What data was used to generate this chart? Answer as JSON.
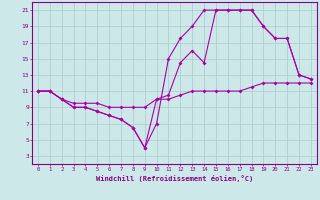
{
  "xlabel": "Windchill (Refroidissement éolien,°C)",
  "background_color": "#cce8e8",
  "grid_color": "#aacccc",
  "line_color": "#aa00aa",
  "xlim": [
    -0.5,
    23.5
  ],
  "ylim": [
    2,
    22
  ],
  "yticks": [
    3,
    5,
    7,
    9,
    11,
    13,
    15,
    17,
    19,
    21
  ],
  "xticks": [
    0,
    1,
    2,
    3,
    4,
    5,
    6,
    7,
    8,
    9,
    10,
    11,
    12,
    13,
    14,
    15,
    16,
    17,
    18,
    19,
    20,
    21,
    22,
    23
  ],
  "line1_x": [
    0,
    1,
    2,
    3,
    4,
    5,
    6,
    7,
    8,
    9,
    10,
    11,
    12,
    13,
    14,
    15,
    16,
    17,
    18,
    19,
    20,
    21,
    22,
    23
  ],
  "line1_y": [
    11,
    11,
    10,
    9.5,
    9.5,
    9.5,
    9,
    9,
    9,
    9,
    10,
    10,
    10.5,
    11,
    11,
    11,
    11,
    11,
    11.5,
    12,
    12,
    12,
    12,
    12
  ],
  "line2_x": [
    0,
    1,
    2,
    3,
    4,
    5,
    6,
    7,
    8,
    9,
    10,
    11,
    12,
    13,
    14,
    15,
    16,
    17,
    18,
    19,
    20,
    21,
    22,
    23
  ],
  "line2_y": [
    11,
    11,
    10,
    9,
    9,
    8.5,
    8,
    7.5,
    6.5,
    4,
    7,
    15,
    17.5,
    19,
    21,
    21,
    21,
    21,
    21,
    19,
    17.5,
    17.5,
    13,
    12.5
  ],
  "line3_x": [
    0,
    1,
    2,
    3,
    4,
    5,
    6,
    7,
    8,
    9,
    10,
    11,
    12,
    13,
    14,
    15,
    16,
    17,
    18,
    19,
    20,
    21,
    22,
    23
  ],
  "line3_y": [
    11,
    11,
    10,
    9,
    9,
    8.5,
    8,
    7.5,
    6.5,
    4,
    10,
    10.5,
    14.5,
    16,
    14.5,
    21,
    21,
    21,
    21,
    19,
    17.5,
    17.5,
    13,
    12.5
  ]
}
